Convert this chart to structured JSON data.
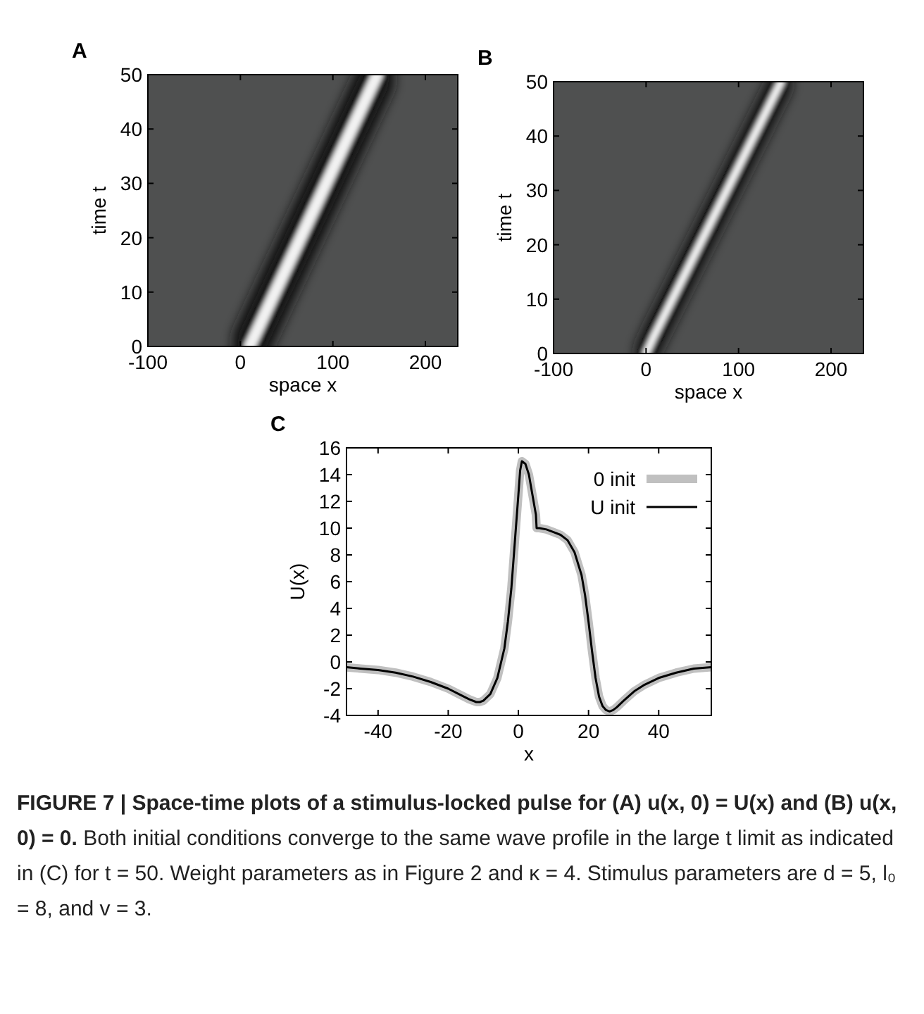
{
  "chart_data": [
    {
      "type": "line",
      "title": "A",
      "xlabel": "space x",
      "ylabel": "time t",
      "xlim": [
        -100,
        235
      ],
      "ylim": [
        0,
        50
      ],
      "xticks": [
        -100,
        0,
        100,
        200
      ],
      "yticks": [
        0,
        10,
        20,
        30,
        40,
        50
      ],
      "series": [
        {
          "color": "#f2f2f2",
          "x": [
            10,
            148
          ],
          "values": [
            0,
            50
          ]
        }
      ]
    },
    {
      "type": "line",
      "title": "B",
      "xlabel": "space x",
      "ylabel": "time t",
      "xlim": [
        -100,
        235
      ],
      "ylim": [
        0,
        50
      ],
      "xticks": [
        -100,
        0,
        100,
        200
      ],
      "yticks": [
        0,
        10,
        20,
        30,
        40,
        50
      ],
      "series": [
        {
          "color": "#f2f2f2",
          "x": [
            0,
            8,
            146
          ],
          "values": [
            0,
            3,
            50
          ]
        }
      ]
    },
    {
      "type": "line",
      "title": "C",
      "xlabel": "x",
      "ylabel": "U(x)",
      "xlim": [
        -49,
        55
      ],
      "ylim": [
        -4,
        16
      ],
      "xticks": [
        -40,
        -20,
        0,
        20,
        40
      ],
      "yticks": [
        -4,
        -2,
        0,
        2,
        4,
        6,
        8,
        10,
        12,
        14,
        16
      ],
      "legend": "top right",
      "grid": false,
      "x": [
        -49,
        -45,
        -40,
        -35,
        -30,
        -25,
        -20,
        -17,
        -14,
        -12,
        -11,
        -10,
        -8,
        -6,
        -4,
        -3,
        -2,
        -1,
        0,
        0.5,
        1,
        2,
        3,
        4,
        5,
        5.2,
        6,
        8,
        10,
        12,
        14,
        16,
        18,
        19,
        20,
        21,
        22,
        23,
        24,
        25,
        26,
        27,
        28,
        30,
        33,
        36,
        40,
        45,
        50,
        55
      ],
      "series": [
        {
          "name": "0 init",
          "color": "#c0c0c0",
          "values": [
            -0.4,
            -0.5,
            -0.6,
            -0.8,
            -1.1,
            -1.5,
            -2.0,
            -2.4,
            -2.8,
            -3.0,
            -3.0,
            -2.9,
            -2.4,
            -1.2,
            1.0,
            3,
            5.5,
            9,
            12.5,
            14.3,
            15,
            14.8,
            14,
            12.5,
            11,
            10,
            10,
            9.9,
            9.7,
            9.5,
            9.1,
            8.2,
            6.5,
            5,
            3,
            0.8,
            -1.2,
            -2.6,
            -3.3,
            -3.6,
            -3.7,
            -3.6,
            -3.4,
            -2.9,
            -2.2,
            -1.7,
            -1.2,
            -0.8,
            -0.5,
            -0.4
          ]
        },
        {
          "name": "U init",
          "color": "#000000",
          "values": [
            -0.4,
            -0.5,
            -0.6,
            -0.8,
            -1.1,
            -1.5,
            -2.0,
            -2.4,
            -2.8,
            -3.0,
            -3.0,
            -2.9,
            -2.4,
            -1.2,
            1.0,
            3,
            5.5,
            9,
            12.5,
            14.3,
            15,
            14.8,
            14,
            12.5,
            11,
            10,
            10,
            9.9,
            9.7,
            9.5,
            9.1,
            8.2,
            6.5,
            5,
            3,
            0.8,
            -1.2,
            -2.6,
            -3.3,
            -3.6,
            -3.7,
            -3.6,
            -3.4,
            -2.9,
            -2.2,
            -1.7,
            -1.2,
            -0.8,
            -0.5,
            -0.4
          ]
        }
      ],
      "annotations": [
        "FIGURE 7 | Space-time plots of a stimulus-locked pulse for (A) u(x,  0) = U(x) and (B) u(x,  0) = 0.",
        "Both initial conditions converge to the same wave profile in the large t limit as indicated in (C) for t = 50. Weight parameters as in Figure 2 and κ = 4. Stimulus parameters are d = 5,  l₀ = 8,  and v = 3."
      ]
    }
  ]
}
